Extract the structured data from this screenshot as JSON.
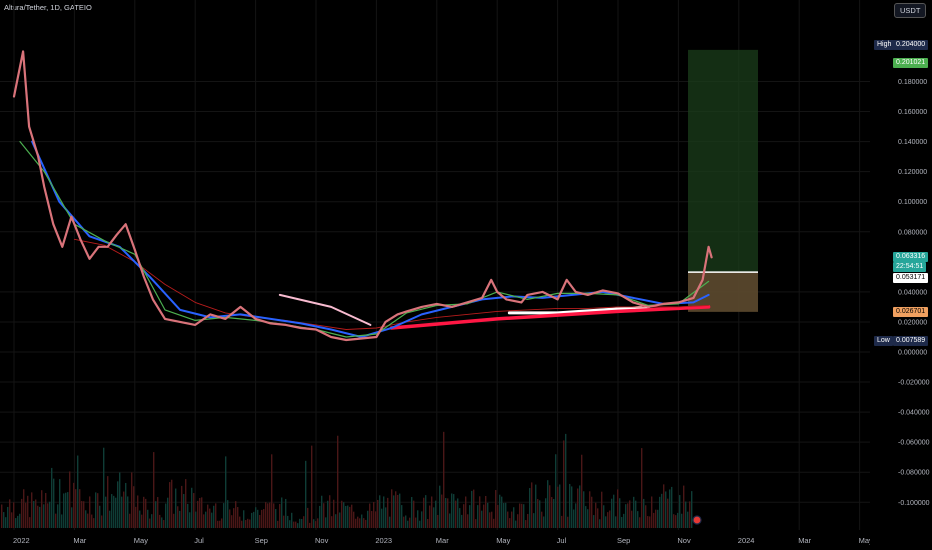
{
  "header": {
    "symbol_title": "Altura/Tether, 1D, GATEIO",
    "currency": "USDT"
  },
  "y_axis": {
    "ticks": [
      "0.180000",
      "0.160000",
      "0.140000",
      "0.120000",
      "0.100000",
      "0.080000",
      "0.040000",
      "0.020000",
      "0.000000",
      "-0.020000",
      "-0.040000",
      "-0.060000",
      "-0.080000",
      "-0.100000"
    ],
    "tick_values": [
      0.18,
      0.16,
      0.14,
      0.12,
      0.1,
      0.08,
      0.04,
      0.02,
      0.0,
      -0.02,
      -0.04,
      -0.06,
      -0.08,
      -0.1
    ]
  },
  "x_axis": {
    "ticks": [
      "2022",
      "Mar",
      "May",
      "Jul",
      "Sep",
      "Nov",
      "2023",
      "Mar",
      "May",
      "Jul",
      "Sep",
      "Nov",
      "2024",
      "Mar",
      "May"
    ],
    "tick_months": [
      0,
      2,
      4,
      6,
      8,
      10,
      12,
      14,
      16,
      18,
      20,
      22,
      24,
      26,
      28
    ]
  },
  "price_tags": {
    "high_label": "High",
    "high_value": "0.204000",
    "target_value": "0.201021",
    "last_value": "0.063316",
    "countdown": "22:54:51",
    "entry_value": "0.053171",
    "stop_value": "0.026701",
    "low_label": "Low",
    "low_value": "0.007589"
  },
  "colors": {
    "background": "#000000",
    "candle_up": "#26a69a",
    "candle_down": "#ef5350",
    "price_line": "#d9737a",
    "ema_fast": "#4caf50",
    "ema_slow": "#2962ff",
    "sma_long": "#b71c1c",
    "trend_pink": "#f8bbd0",
    "trend_red": "#ff1744",
    "target_zone": "#1b3d1b",
    "stop_zone": "#5d4a2f",
    "tag_last": "#26a69a",
    "tag_target": "#4caf50",
    "tag_stop": "#f0a060",
    "tag_label": "#1e2a4a"
  },
  "chart_data": {
    "type": "line",
    "title": "Altura/Tether, 1D, GATEIO",
    "x_unit": "months since Jan 2022",
    "ylim": [
      -0.11,
      0.21
    ],
    "series": [
      {
        "name": "close",
        "points": [
          [
            0,
            0.17
          ],
          [
            0.3,
            0.2
          ],
          [
            0.5,
            0.15
          ],
          [
            0.8,
            0.13
          ],
          [
            1.0,
            0.11
          ],
          [
            1.3,
            0.085
          ],
          [
            1.6,
            0.07
          ],
          [
            1.9,
            0.09
          ],
          [
            2.2,
            0.075
          ],
          [
            2.5,
            0.062
          ],
          [
            2.8,
            0.07
          ],
          [
            3.1,
            0.07
          ],
          [
            3.4,
            0.078
          ],
          [
            3.7,
            0.085
          ],
          [
            4.0,
            0.068
          ],
          [
            4.3,
            0.05
          ],
          [
            4.6,
            0.035
          ],
          [
            5.0,
            0.022
          ],
          [
            5.5,
            0.02
          ],
          [
            6.0,
            0.018
          ],
          [
            6.5,
            0.025
          ],
          [
            7.0,
            0.022
          ],
          [
            7.5,
            0.03
          ],
          [
            8.0,
            0.022
          ],
          [
            8.5,
            0.019
          ],
          [
            9.0,
            0.018
          ],
          [
            9.5,
            0.016
          ],
          [
            10.0,
            0.015
          ],
          [
            10.5,
            0.01
          ],
          [
            11.0,
            0.008
          ],
          [
            11.5,
            0.009
          ],
          [
            12.0,
            0.01
          ],
          [
            12.3,
            0.02
          ],
          [
            12.7,
            0.025
          ],
          [
            13.0,
            0.027
          ],
          [
            13.5,
            0.03
          ],
          [
            14.0,
            0.032
          ],
          [
            14.5,
            0.03
          ],
          [
            15.0,
            0.033
          ],
          [
            15.5,
            0.036
          ],
          [
            15.8,
            0.048
          ],
          [
            16.0,
            0.04
          ],
          [
            16.3,
            0.035
          ],
          [
            16.8,
            0.033
          ],
          [
            17.0,
            0.038
          ],
          [
            17.5,
            0.04
          ],
          [
            18.0,
            0.035
          ],
          [
            18.3,
            0.048
          ],
          [
            18.6,
            0.04
          ],
          [
            19.0,
            0.038
          ],
          [
            19.5,
            0.041
          ],
          [
            20.0,
            0.039
          ],
          [
            20.5,
            0.033
          ],
          [
            21.0,
            0.03
          ],
          [
            21.5,
            0.032
          ],
          [
            22.0,
            0.033
          ],
          [
            22.5,
            0.036
          ],
          [
            22.8,
            0.048
          ],
          [
            23.0,
            0.07
          ],
          [
            23.1,
            0.063
          ]
        ]
      },
      {
        "name": "EMA fast",
        "points": [
          [
            0.2,
            0.14
          ],
          [
            1.0,
            0.12
          ],
          [
            2.0,
            0.085
          ],
          [
            3.0,
            0.074
          ],
          [
            4.0,
            0.065
          ],
          [
            5.0,
            0.028
          ],
          [
            6.0,
            0.021
          ],
          [
            7.0,
            0.023
          ],
          [
            8.0,
            0.021
          ],
          [
            9.0,
            0.018
          ],
          [
            10.0,
            0.015
          ],
          [
            11.0,
            0.01
          ],
          [
            12.0,
            0.012
          ],
          [
            13.0,
            0.026
          ],
          [
            14.0,
            0.031
          ],
          [
            15.0,
            0.032
          ],
          [
            16.0,
            0.04
          ],
          [
            17.0,
            0.035
          ],
          [
            18.0,
            0.039
          ],
          [
            19.0,
            0.039
          ],
          [
            20.0,
            0.038
          ],
          [
            21.0,
            0.031
          ],
          [
            22.0,
            0.032
          ],
          [
            23.0,
            0.047
          ]
        ]
      },
      {
        "name": "EMA slow",
        "points": [
          [
            0.6,
            0.14
          ],
          [
            1.5,
            0.1
          ],
          [
            2.5,
            0.077
          ],
          [
            3.5,
            0.07
          ],
          [
            4.5,
            0.05
          ],
          [
            5.5,
            0.028
          ],
          [
            6.5,
            0.023
          ],
          [
            7.5,
            0.025
          ],
          [
            8.5,
            0.022
          ],
          [
            9.5,
            0.019
          ],
          [
            10.5,
            0.015
          ],
          [
            11.5,
            0.01
          ],
          [
            12.5,
            0.016
          ],
          [
            13.5,
            0.025
          ],
          [
            14.5,
            0.03
          ],
          [
            15.5,
            0.035
          ],
          [
            16.5,
            0.037
          ],
          [
            17.5,
            0.036
          ],
          [
            18.5,
            0.038
          ],
          [
            19.5,
            0.04
          ],
          [
            20.5,
            0.036
          ],
          [
            21.5,
            0.032
          ],
          [
            22.5,
            0.033
          ],
          [
            23.0,
            0.038
          ]
        ]
      },
      {
        "name": "SMA long",
        "points": [
          [
            2.0,
            0.075
          ],
          [
            3.0,
            0.071
          ],
          [
            4.0,
            0.06
          ],
          [
            5.0,
            0.045
          ],
          [
            6.0,
            0.033
          ],
          [
            7.0,
            0.026
          ],
          [
            8.0,
            0.023
          ],
          [
            9.0,
            0.021
          ],
          [
            10.0,
            0.018
          ],
          [
            11.0,
            0.015
          ],
          [
            12.0,
            0.016
          ],
          [
            13.0,
            0.02
          ],
          [
            14.0,
            0.023
          ],
          [
            15.0,
            0.025
          ],
          [
            16.0,
            0.027
          ],
          [
            17.0,
            0.028
          ],
          [
            18.0,
            0.029
          ],
          [
            19.0,
            0.029
          ],
          [
            20.0,
            0.03
          ],
          [
            21.0,
            0.03
          ],
          [
            22.0,
            0.03
          ],
          [
            23.0,
            0.031
          ]
        ]
      }
    ],
    "volume_level": [
      0.35,
      0.55,
      0.4,
      0.5,
      0.3,
      0.45,
      0.3,
      0.25,
      0.28,
      0.2,
      0.3,
      0.25,
      0.35,
      0.3,
      0.4,
      0.35,
      0.3,
      0.45,
      0.4,
      0.35,
      0.3,
      0.45,
      0.4,
      0.35
    ],
    "position": {
      "entry": 0.053171,
      "target": 0.201021,
      "stop": 0.026701
    },
    "trend_lines": [
      {
        "name": "pink arc",
        "points": [
          [
            8.8,
            0.038
          ],
          [
            10.5,
            0.03
          ],
          [
            11.8,
            0.018
          ]
        ]
      },
      {
        "name": "white support",
        "points": [
          [
            16.4,
            0.026
          ],
          [
            18,
            0.026
          ],
          [
            19.5,
            0.028
          ],
          [
            21,
            0.03
          ]
        ]
      },
      {
        "name": "red support",
        "points": [
          [
            12.5,
            0.016
          ],
          [
            16,
            0.022
          ],
          [
            20,
            0.027
          ],
          [
            23,
            0.03
          ]
        ]
      }
    ],
    "grid": true
  }
}
